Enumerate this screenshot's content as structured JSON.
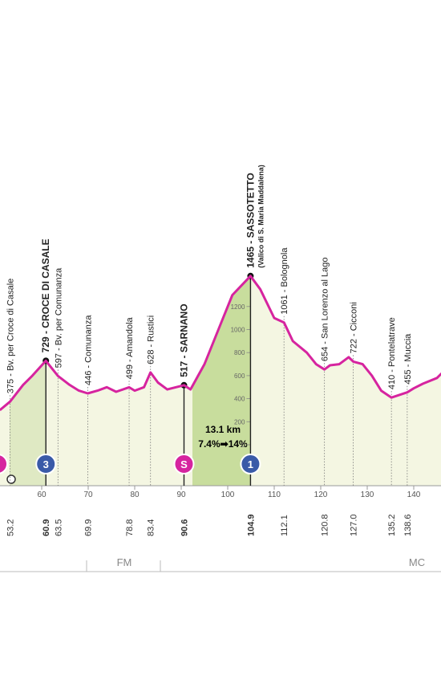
{
  "profile": {
    "km": [
      51,
      53.2,
      56,
      58,
      60.9,
      63.5,
      66,
      68,
      69.9,
      72,
      74,
      76,
      78.8,
      80,
      82,
      83.4,
      85,
      87,
      90.6,
      92,
      95,
      98,
      101,
      104.9,
      107,
      110,
      112.1,
      114,
      117,
      119,
      120.8,
      122,
      124,
      126,
      127,
      129,
      131,
      133,
      135.2,
      136,
      138.6,
      140,
      142,
      145,
      146
    ],
    "altitude": [
      300,
      375,
      520,
      600,
      729,
      597,
      520,
      470,
      446,
      470,
      500,
      460,
      499,
      470,
      500,
      628,
      540,
      480,
      517,
      480,
      700,
      1000,
      1300,
      1465,
      1350,
      1100,
      1061,
      900,
      800,
      700,
      654,
      690,
      700,
      760,
      722,
      700,
      600,
      470,
      410,
      420,
      455,
      490,
      530,
      580,
      620
    ]
  },
  "km_ticks": [
    60,
    70,
    80,
    90,
    100,
    110,
    120,
    130,
    140
  ],
  "altitude_ticks": [
    0,
    200,
    400,
    600,
    800,
    1000,
    1200
  ],
  "waypoints": [
    {
      "km": 53.2,
      "altitude": 375,
      "label": "375 - Bv. per Croce di Casale",
      "major": false
    },
    {
      "km": 60.9,
      "altitude": 729,
      "label": "729 - CROCE DI CASALE",
      "major": true,
      "icon": "3",
      "icon_color": "#3a5aa8"
    },
    {
      "km": 63.5,
      "altitude": 597,
      "label": "597 - Bv. per Comunanza",
      "major": false
    },
    {
      "km": 69.9,
      "altitude": 446,
      "label": "446 - Comunanza",
      "major": false
    },
    {
      "km": 78.8,
      "altitude": 499,
      "label": "499 - Amandola",
      "major": false
    },
    {
      "km": 83.4,
      "altitude": 628,
      "label": "628 - Rustici",
      "major": false
    },
    {
      "km": 90.6,
      "altitude": 517,
      "label": "517 - SARNANO",
      "major": true,
      "icon": "S",
      "icon_color": "#d6249f"
    },
    {
      "km": 104.9,
      "altitude": 1465,
      "label": "1465 - SASSOTETTO",
      "note": "(Valico di S. Maria Maddalena)",
      "major": true,
      "icon": "1",
      "icon_color": "#3a5aa8"
    },
    {
      "km": 112.1,
      "altitude": 1061,
      "label": "1061 - Bolognola",
      "major": false
    },
    {
      "km": 120.8,
      "altitude": 654,
      "label": "654 - San Lorenzo al Lago",
      "major": false
    },
    {
      "km": {
        "value": 127,
        "label": "127.0"
      },
      "altitude": 722,
      "label": "722 - Cicconi",
      "major": false
    },
    {
      "km": 135.2,
      "altitude": 410,
      "label": "410 - Pontelatrave",
      "major": false
    },
    {
      "km": 138.6,
      "altitude": 455,
      "label": "455 - Muccia",
      "major": false
    }
  ],
  "climb_info": {
    "length": "13.1 km",
    "gradient": "7.4%➡14%"
  },
  "regions": [
    "FM",
    "MC"
  ],
  "line_color": "#d6249f"
}
